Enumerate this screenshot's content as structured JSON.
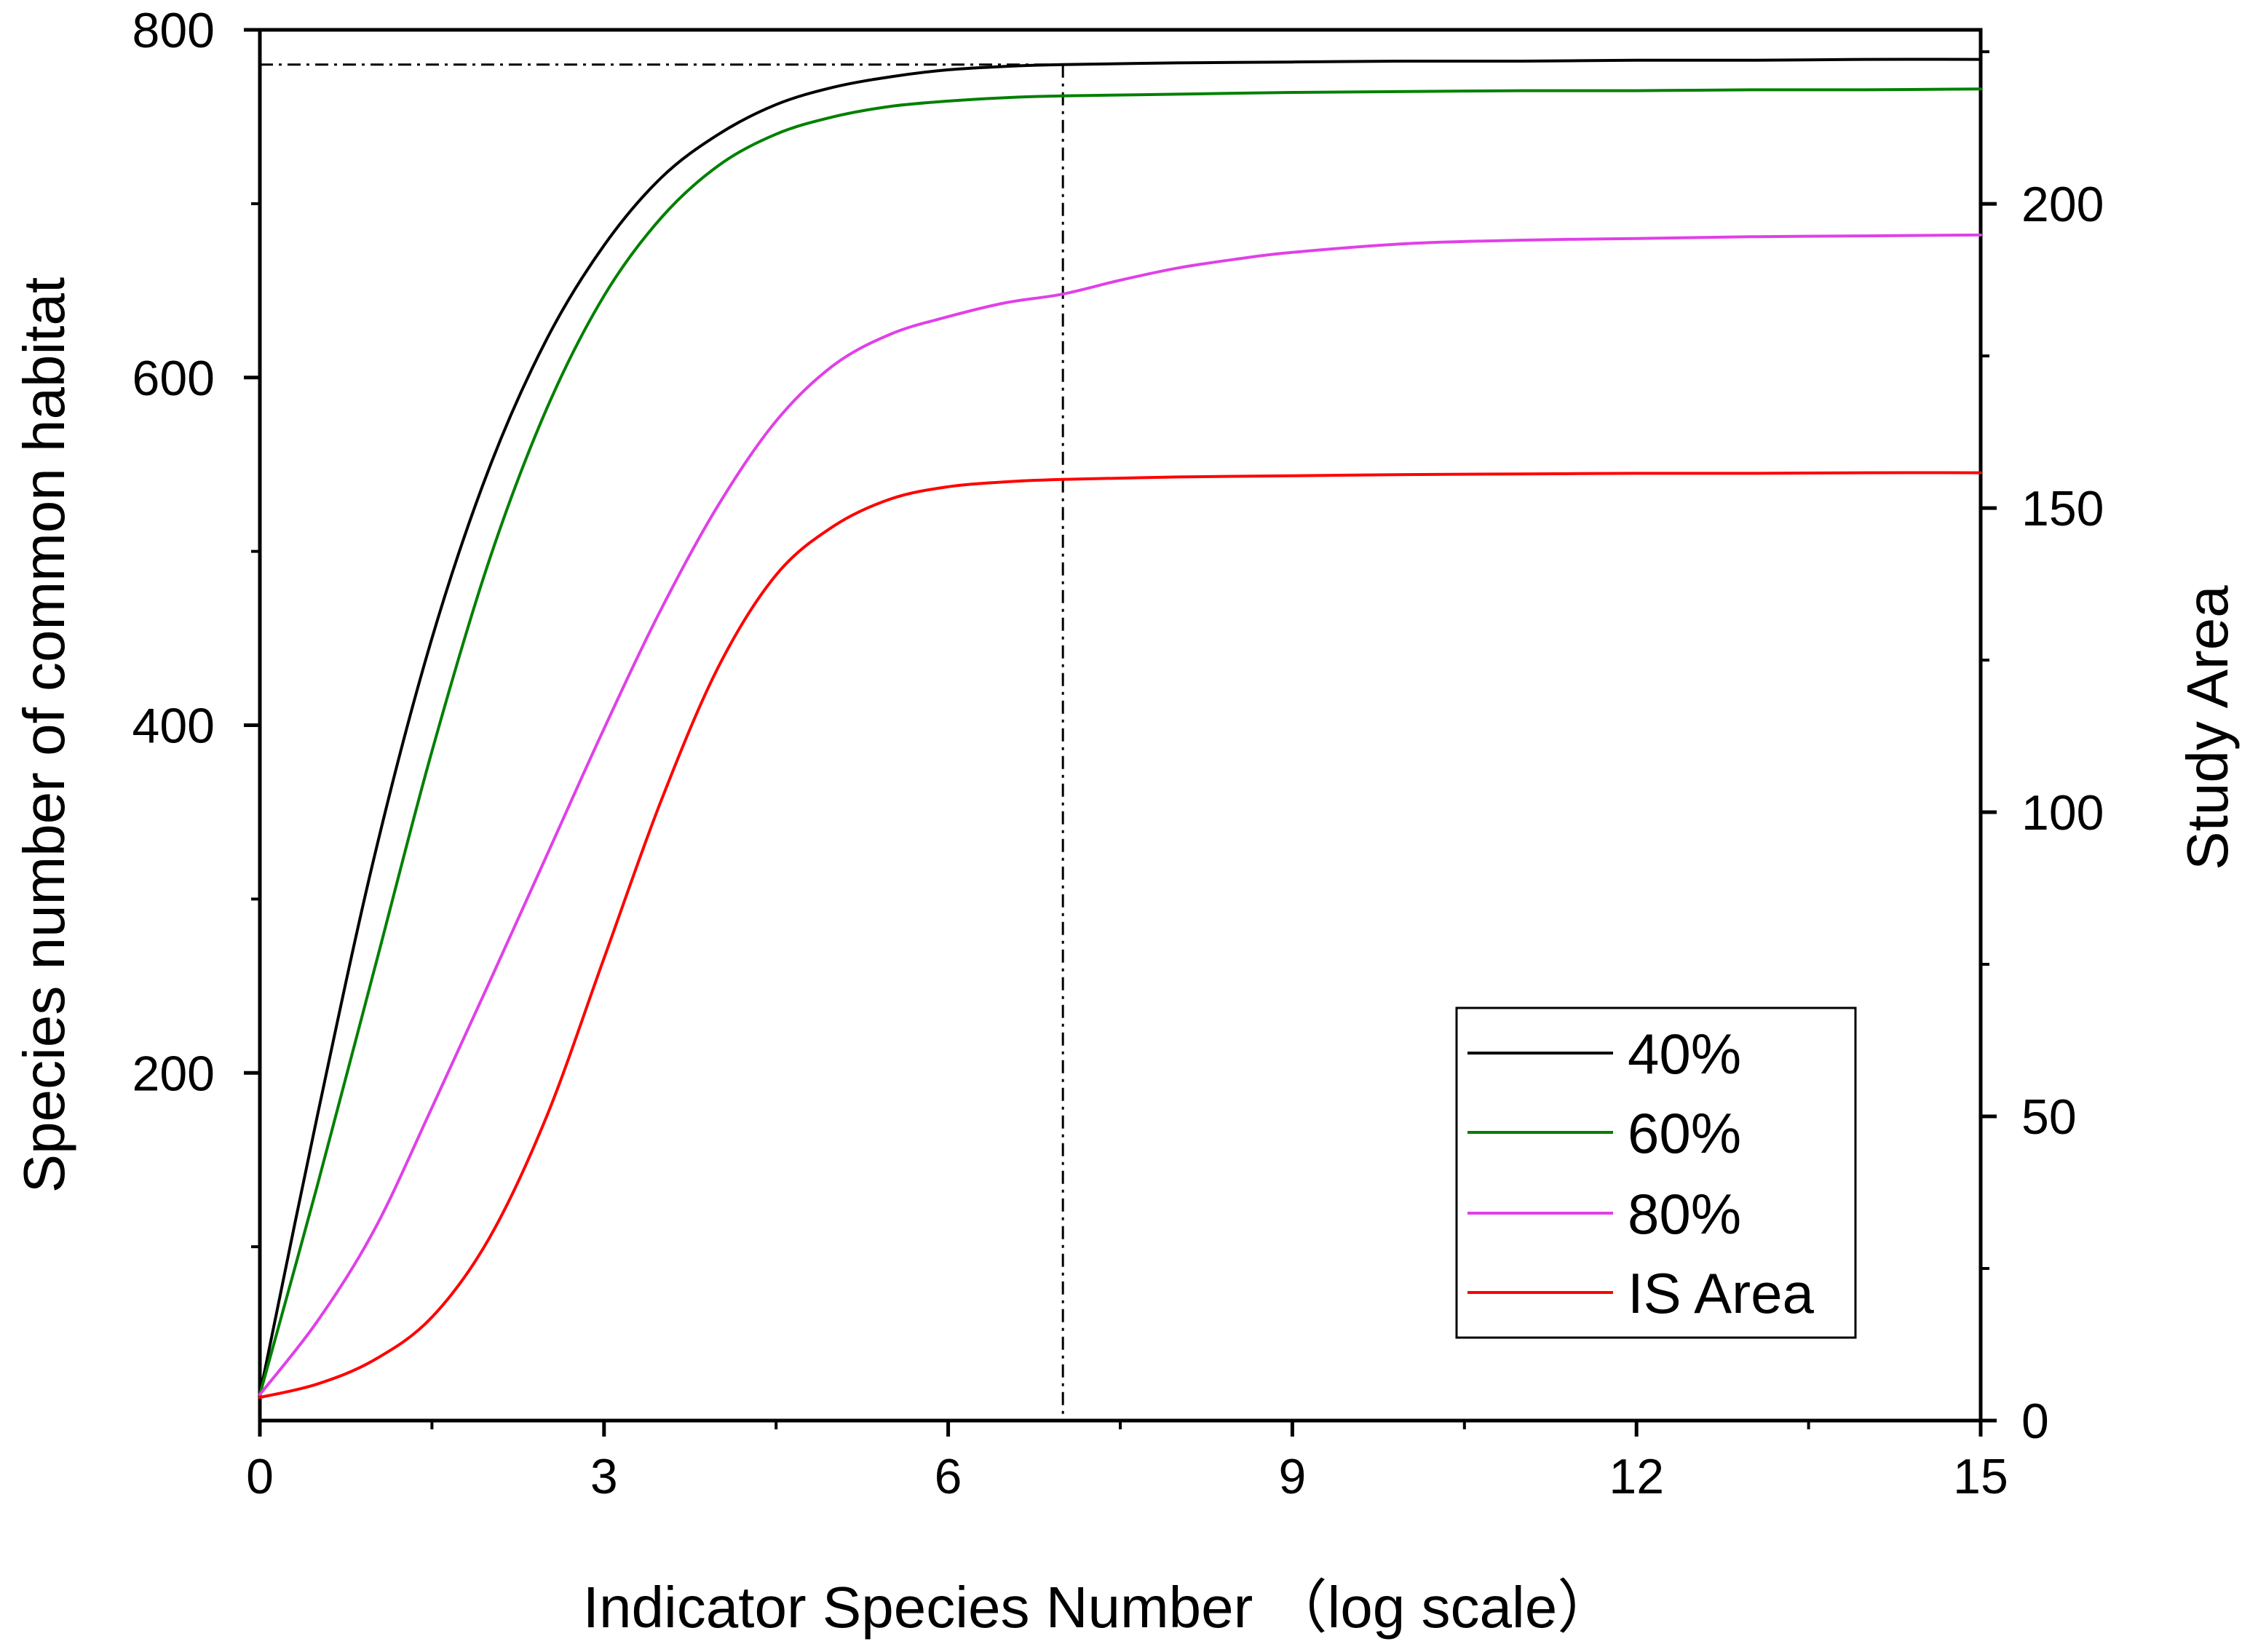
{
  "chart_data": {
    "type": "line",
    "xlabel": "Indicator Species Number （log scale）",
    "ylabel": "Species number of common habitat",
    "y2label": "Study Area",
    "xlim": [
      0,
      15
    ],
    "ylim": [
      0,
      800
    ],
    "y2lim": [
      0,
      228.6
    ],
    "xticks": [
      0,
      3,
      6,
      9,
      12,
      15
    ],
    "yticks": [
      200,
      400,
      600,
      800
    ],
    "y2ticks": [
      0,
      50,
      100,
      150,
      200
    ],
    "grid": false,
    "legend_position": "lower-right",
    "reference_lines": {
      "x": 7,
      "y": 780
    },
    "series": [
      {
        "name": "40%",
        "color": "#000000",
        "axis": "left",
        "x": [
          0,
          0.5,
          1,
          1.5,
          2,
          2.5,
          3,
          3.5,
          4,
          4.5,
          5,
          5.5,
          6,
          6.5,
          7,
          8,
          9,
          10,
          11,
          12,
          13,
          14,
          15
        ],
        "y": [
          15,
          175,
          325,
          450,
          548,
          622,
          676,
          715,
          740,
          757,
          767,
          773,
          777,
          779,
          780,
          781,
          781.5,
          782,
          782,
          782.5,
          782.5,
          783,
          783
        ]
      },
      {
        "name": "60%",
        "color": "#008000",
        "axis": "left",
        "x": [
          0,
          0.5,
          1,
          1.5,
          2,
          2.5,
          3,
          3.5,
          4,
          4.5,
          5,
          5.5,
          6,
          6.5,
          7,
          8,
          9,
          10,
          11,
          12,
          13,
          14,
          15
        ],
        "y": [
          15,
          135,
          260,
          385,
          495,
          582,
          647,
          692,
          722,
          740,
          750,
          756,
          759,
          761,
          762,
          763,
          764,
          764.5,
          765,
          765,
          765.5,
          765.5,
          766
        ]
      },
      {
        "name": "80%",
        "color": "#e040e8",
        "axis": "left",
        "x": [
          0,
          0.5,
          1,
          1.5,
          2,
          2.5,
          3,
          3.5,
          4,
          4.5,
          5,
          5.5,
          6,
          6.5,
          7,
          7.5,
          8,
          8.5,
          9,
          10,
          11,
          12,
          13,
          14,
          15
        ],
        "y": [
          15,
          57,
          110,
          180,
          252,
          325,
          398,
          467,
          527,
          575,
          607,
          625,
          635,
          643,
          648,
          656,
          663,
          668,
          672,
          677,
          679,
          680,
          681,
          681.5,
          682
        ]
      },
      {
        "name": "IS Area",
        "color": "#ff0000",
        "axis": "right",
        "x": [
          0,
          0.5,
          1,
          1.5,
          2,
          2.5,
          3,
          3.5,
          4,
          4.5,
          5,
          5.5,
          6,
          6.5,
          7,
          8,
          9,
          10,
          11,
          12,
          13,
          14,
          15
        ],
        "y": [
          3.8,
          6,
          10,
          17,
          30,
          50,
          76,
          102,
          124,
          139,
          147,
          151.5,
          153.5,
          154.3,
          154.7,
          155.1,
          155.3,
          155.5,
          155.6,
          155.7,
          155.7,
          155.8,
          155.8
        ]
      }
    ]
  }
}
